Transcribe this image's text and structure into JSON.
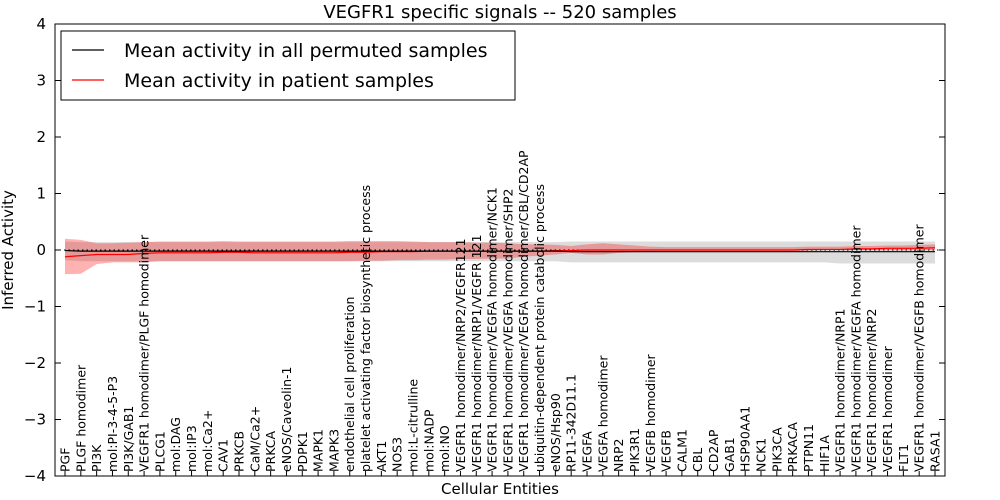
{
  "chart_data": {
    "type": "line",
    "title": "VEGFR1 specific signals -- 520 samples",
    "xlabel": "Cellular Entities",
    "ylabel": "Inferred Activity",
    "ylim": [
      -4,
      4
    ],
    "yticks": [
      "4",
      "3",
      "2",
      "1",
      "0",
      "−1",
      "−2",
      "−3",
      "−4"
    ],
    "grid": false,
    "legend_position": "top-left",
    "categories": [
      "PGF",
      "PLGF homodimer",
      "PI3K",
      "mol:PI-3-4-5-P3",
      "PI3K/GAB1",
      "VEGFR1 homodimer/PLGF homodimer",
      "PLCG1",
      "mol:DAG",
      "mol:IP3",
      "mol:Ca2+",
      "CAV1",
      "PRKCB",
      "CaM/Ca2+",
      "PRKCA",
      "eNOS/Caveolin-1",
      "PDPK1",
      "MAPK1",
      "MAPK3",
      "endothelial cell proliferation",
      "platelet activating factor biosynthetic process",
      "AKT1",
      "NOS3",
      "mol:L-citrulline",
      "mol:NADP",
      "mol:NO",
      "VEGFR1 homodimer/NRP2/VEGFR121",
      "VEGFR1 homodimer/NRP1/VEGFR 121",
      "VEGFR1 homodimer/VEGFA homodimer/NCK1",
      "VEGFR1 homodimer/VEGFA homodimer/SHP2",
      "VEGFR1 homodimer/VEGFA homodimer/CBL/CD2AP",
      "ubiquitin-dependent protein catabolic process",
      "eNOS/Hsp90",
      "RP11-342D11.1",
      "VEGFA",
      "VEGFA homodimer",
      "NRP2",
      "PIK3R1",
      "VEGFB homodimer",
      "VEGFB",
      "CALM1",
      "CBL",
      "CD2AP",
      "GAB1",
      "HSP90AA1",
      "NCK1",
      "PIK3CA",
      "PRKACA",
      "PTPN11",
      "HIF1A",
      "VEGFR1 homodimer/NRP1",
      "VEGFR1 homodimer/VEGFA homodimer",
      "VEGFR1 homodimer/NRP2",
      "VEGFR1 homodimer",
      "FLT1",
      "VEGFR1 homodimer/VEGFB homodimer",
      "RASA1"
    ],
    "series": [
      {
        "name": "Mean activity in all permuted samples",
        "color": "#000000",
        "values": [
          -0.01,
          -0.02,
          -0.02,
          -0.02,
          -0.02,
          -0.02,
          -0.02,
          -0.02,
          -0.02,
          -0.02,
          -0.02,
          -0.02,
          -0.02,
          -0.02,
          -0.02,
          -0.02,
          -0.02,
          -0.02,
          -0.02,
          -0.02,
          -0.02,
          -0.02,
          -0.02,
          -0.02,
          -0.02,
          -0.02,
          -0.02,
          -0.02,
          -0.02,
          -0.02,
          -0.02,
          -0.02,
          -0.03,
          -0.03,
          -0.03,
          -0.03,
          -0.03,
          -0.03,
          -0.03,
          -0.03,
          -0.03,
          -0.03,
          -0.03,
          -0.03,
          -0.03,
          -0.03,
          -0.03,
          -0.03,
          -0.03,
          -0.03,
          -0.03,
          -0.03,
          -0.03,
          -0.03,
          -0.03,
          -0.03
        ],
        "band_low": [
          -0.18,
          -0.2,
          -0.2,
          -0.2,
          -0.2,
          -0.2,
          -0.2,
          -0.2,
          -0.2,
          -0.2,
          -0.2,
          -0.2,
          -0.2,
          -0.2,
          -0.2,
          -0.2,
          -0.2,
          -0.2,
          -0.2,
          -0.2,
          -0.2,
          -0.2,
          -0.2,
          -0.2,
          -0.2,
          -0.2,
          -0.2,
          -0.2,
          -0.2,
          -0.2,
          -0.2,
          -0.2,
          -0.22,
          -0.22,
          -0.22,
          -0.22,
          -0.22,
          -0.22,
          -0.22,
          -0.22,
          -0.22,
          -0.22,
          -0.22,
          -0.22,
          -0.22,
          -0.22,
          -0.22,
          -0.22,
          -0.22,
          -0.24,
          -0.24,
          -0.24,
          -0.24,
          -0.24,
          -0.24,
          -0.24
        ],
        "band_high": [
          0.15,
          0.14,
          0.14,
          0.14,
          0.14,
          0.14,
          0.14,
          0.14,
          0.14,
          0.14,
          0.14,
          0.14,
          0.14,
          0.14,
          0.14,
          0.14,
          0.14,
          0.14,
          0.14,
          0.14,
          0.14,
          0.14,
          0.14,
          0.14,
          0.14,
          0.14,
          0.14,
          0.14,
          0.14,
          0.14,
          0.14,
          0.14,
          0.15,
          0.15,
          0.15,
          0.15,
          0.15,
          0.15,
          0.15,
          0.15,
          0.15,
          0.15,
          0.15,
          0.15,
          0.15,
          0.15,
          0.15,
          0.15,
          0.15,
          0.15,
          0.15,
          0.15,
          0.15,
          0.15,
          0.15,
          0.15
        ]
      },
      {
        "name": "Mean activity in patient samples",
        "color": "#ff0000",
        "values": [
          -0.12,
          -0.1,
          -0.08,
          -0.08,
          -0.08,
          -0.06,
          -0.05,
          -0.05,
          -0.05,
          -0.05,
          -0.04,
          -0.04,
          -0.05,
          -0.05,
          -0.05,
          -0.05,
          -0.05,
          -0.05,
          -0.04,
          -0.04,
          -0.03,
          -0.03,
          -0.03,
          -0.02,
          -0.02,
          -0.02,
          -0.02,
          -0.02,
          -0.02,
          -0.02,
          -0.02,
          -0.01,
          -0.01,
          0.0,
          0.0,
          0.0,
          0.0,
          0.0,
          0.0,
          0.0,
          0.0,
          0.0,
          0.0,
          0.0,
          0.0,
          0.0,
          0.0,
          0.01,
          0.01,
          0.01,
          0.02,
          0.02,
          0.03,
          0.03,
          0.03,
          0.04
        ],
        "band_low": [
          -0.43,
          -0.42,
          -0.25,
          -0.22,
          -0.22,
          -0.22,
          -0.2,
          -0.2,
          -0.2,
          -0.2,
          -0.2,
          -0.2,
          -0.2,
          -0.2,
          -0.2,
          -0.2,
          -0.2,
          -0.2,
          -0.2,
          -0.19,
          -0.19,
          -0.18,
          -0.18,
          -0.17,
          -0.17,
          -0.16,
          -0.16,
          -0.15,
          -0.15,
          -0.12,
          -0.1,
          -0.08,
          -0.05,
          -0.08,
          -0.08,
          -0.05,
          -0.04,
          -0.03,
          -0.03,
          -0.03,
          -0.03,
          -0.03,
          -0.03,
          -0.03,
          -0.03,
          -0.03,
          -0.02,
          -0.01,
          0.0,
          0.0,
          0.0,
          0.0,
          0.0,
          0.0,
          0.0,
          0.0
        ],
        "band_high": [
          0.2,
          0.18,
          0.12,
          0.12,
          0.13,
          0.14,
          0.15,
          0.15,
          0.15,
          0.15,
          0.16,
          0.15,
          0.15,
          0.15,
          0.15,
          0.15,
          0.15,
          0.15,
          0.16,
          0.16,
          0.16,
          0.16,
          0.15,
          0.14,
          0.14,
          0.14,
          0.13,
          0.13,
          0.12,
          0.1,
          0.1,
          0.09,
          0.07,
          0.1,
          0.12,
          0.1,
          0.08,
          0.06,
          0.05,
          0.05,
          0.05,
          0.05,
          0.05,
          0.05,
          0.05,
          0.05,
          0.05,
          0.06,
          0.06,
          0.06,
          0.07,
          0.07,
          0.08,
          0.08,
          0.09,
          0.1
        ]
      }
    ]
  }
}
